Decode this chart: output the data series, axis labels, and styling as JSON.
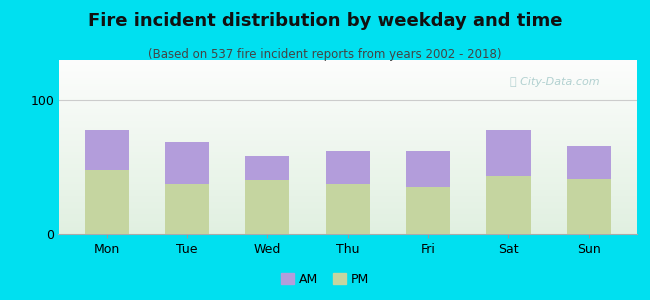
{
  "title": "Fire incident distribution by weekday and time",
  "subtitle": "(Based on 537 fire incident reports from years 2002 - 2018)",
  "categories": [
    "Mon",
    "Tue",
    "Wed",
    "Thu",
    "Fri",
    "Sat",
    "Sun"
  ],
  "pm_values": [
    48,
    37,
    40,
    37,
    35,
    43,
    41
  ],
  "am_values": [
    30,
    32,
    18,
    25,
    27,
    35,
    25
  ],
  "am_color": "#b39ddb",
  "pm_color": "#c5d5a0",
  "background_outer": "#00e0f0",
  "ylim": [
    0,
    130
  ],
  "yticks": [
    0,
    100
  ],
  "bar_width": 0.55,
  "title_fontsize": 13,
  "subtitle_fontsize": 8.5,
  "tick_fontsize": 9,
  "legend_fontsize": 9,
  "watermark_text": "  City-Data.com",
  "watermark_color": "#aacccc",
  "grid_color": "#cccccc"
}
